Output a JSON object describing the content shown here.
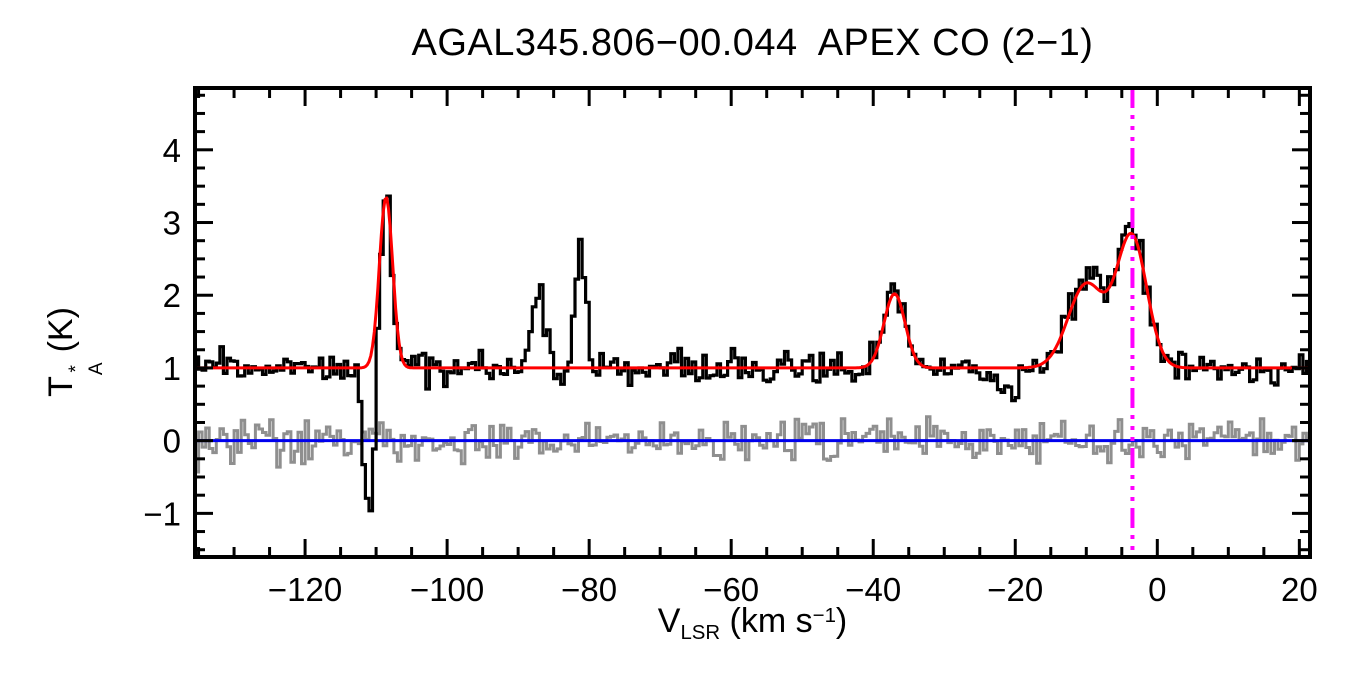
{
  "title": "AGAL345.806−00.044  APEX CO (2−1)",
  "axes": {
    "x_label": {
      "base": "V",
      "sub": "LSR",
      "mid": " (km s",
      "sup": "−1",
      "end": ")"
    },
    "y_label": {
      "base": "T",
      "sup": "*",
      "sub": "A",
      "unit": "(K)"
    }
  },
  "chart_data": {
    "type": "line",
    "title": "AGAL345.806−00.044  APEX CO (2−1)",
    "xlabel": "V_LSR (km s−1)",
    "ylabel": "T_A* (K)",
    "xlim": [
      -135.5,
      21.5
    ],
    "ylim": [
      -1.6,
      4.85
    ],
    "x_ticks": [
      -120,
      -100,
      -80,
      -60,
      -40,
      -20,
      0,
      20
    ],
    "y_ticks": [
      -1,
      0,
      1,
      2,
      3,
      4
    ],
    "x_minor_step": 5,
    "y_minor_step": 0.25,
    "channel_width_kms": 0.5,
    "baseline_level": 1.0,
    "noise_sigma": 0.12,
    "residual_sigma": 0.14,
    "noise_seed": 20240521,
    "residual_seed": 987654,
    "spectrum_features": [
      {
        "center": -108.6,
        "amplitude": 2.45,
        "fwhm": 2.0
      },
      {
        "center": -110.9,
        "amplitude": -2.15,
        "fwhm": 1.7
      },
      {
        "center": -87.2,
        "amplitude": 1.05,
        "fwhm": 2.2
      },
      {
        "center": -81.2,
        "amplitude": 1.75,
        "fwhm": 1.7
      },
      {
        "center": -37.0,
        "amplitude": 1.15,
        "fwhm": 3.5
      },
      {
        "center": -21.5,
        "amplitude": -0.42,
        "fwhm": 3.5
      },
      {
        "center": -10.0,
        "amplitude": 1.2,
        "fwhm": 6.0
      },
      {
        "center": -3.6,
        "amplitude": 1.85,
        "fwhm": 5.0
      }
    ],
    "gaussian_fit_components": [
      {
        "center": -108.6,
        "amplitude": 2.35,
        "fwhm": 2.2
      },
      {
        "center": -37.0,
        "amplitude": 1.02,
        "fwhm": 3.5
      },
      {
        "center": -10.0,
        "amplitude": 1.15,
        "fwhm": 6.0
      },
      {
        "center": -3.6,
        "amplitude": 1.8,
        "fwhm": 5.0
      }
    ],
    "zero_line_y": 0,
    "systemic_velocity": -3.5,
    "colors": {
      "spectrum": "#000000",
      "fit": "#ff0000",
      "residual": "#8f8f8f",
      "zero_line": "#0000ee",
      "systemic_line": "#ff00ff",
      "frame": "#000000"
    }
  }
}
